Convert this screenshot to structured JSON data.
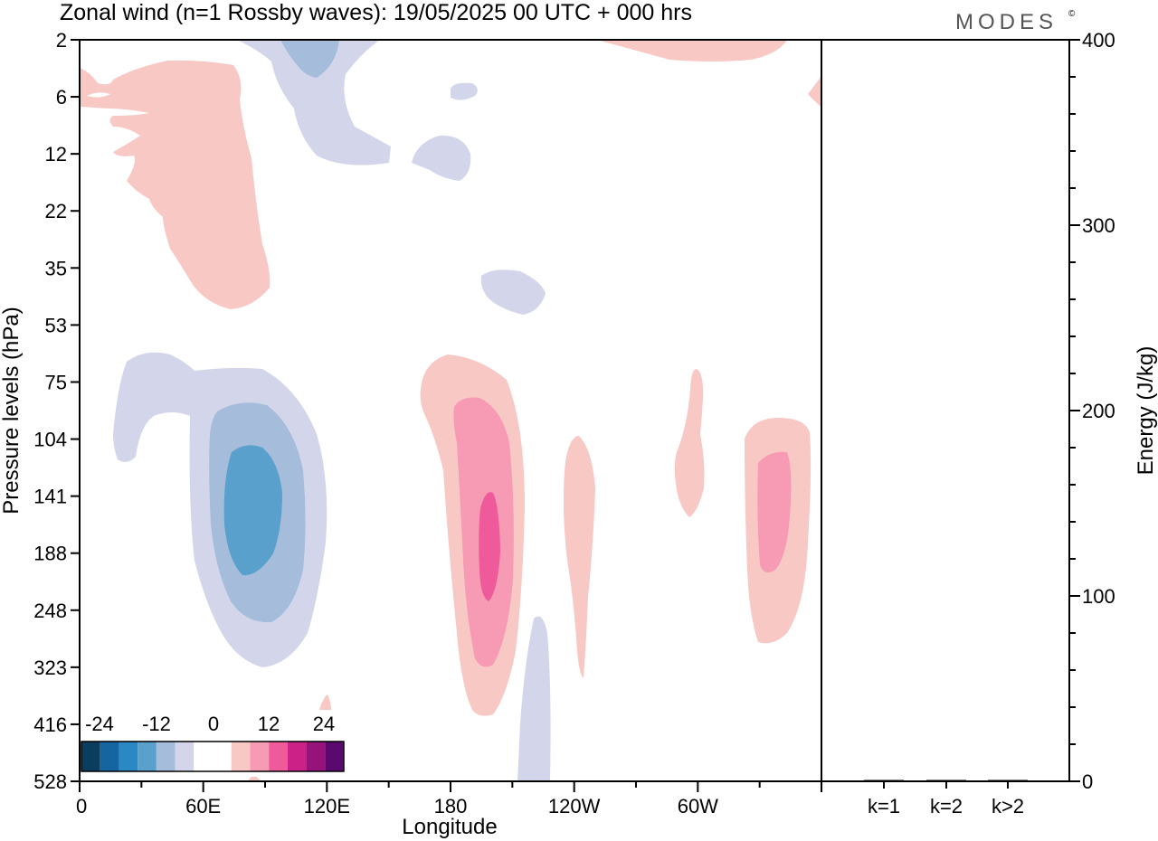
{
  "title": "Zonal wind (n=1 Rossby waves):  19/05/2025  00 UTC  + 000 hrs",
  "brand": "MODES",
  "brand_mark": "©",
  "colors": {
    "neg": [
      "#0b3d5e",
      "#1565a0",
      "#2b88c4",
      "#5aa0cc",
      "#a5bcdb",
      "#d3d6ea"
    ],
    "zero": "#ffffff",
    "pos": [
      "#f8c8c5",
      "#f79ab3",
      "#ee5a9a",
      "#cc2288",
      "#96137a",
      "#5a0a6e"
    ]
  },
  "chart_data": [
    {
      "type": "heatmap",
      "title": "Zonal wind (n=1 Rossby waves):  19/05/2025  00 UTC  + 000 hrs",
      "xlabel": "Longitude",
      "ylabel": "Pressure levels (hPa)",
      "x_ticks": [
        "0",
        "60E",
        "120E",
        "180",
        "120W",
        "60W"
      ],
      "x_tick_lon": [
        0,
        60,
        120,
        180,
        240,
        300
      ],
      "xlim": [
        0,
        360
      ],
      "y_ticks": [
        "2",
        "6",
        "12",
        "22",
        "35",
        "53",
        "75",
        "104",
        "141",
        "188",
        "248",
        "323",
        "416",
        "528"
      ],
      "colorbar": {
        "labels": [
          "-24",
          "-12",
          "0",
          "12",
          "24"
        ],
        "levels": [
          -24,
          -20,
          -16,
          -12,
          -8,
          -4,
          4,
          8,
          12,
          16,
          20,
          24
        ]
      },
      "features": [
        {
          "lon": 82,
          "level": "141",
          "peak": -12,
          "kind": "negative"
        },
        {
          "lon": 20,
          "level": "75",
          "peak": -4,
          "kind": "negative"
        },
        {
          "lon": 100,
          "level": "2",
          "peak": -8,
          "kind": "negative"
        },
        {
          "lon": 185,
          "level": "12",
          "peak": -4,
          "kind": "negative"
        },
        {
          "lon": 200,
          "level": "35",
          "peak": -4,
          "kind": "negative"
        },
        {
          "lon": 222,
          "level": "416",
          "peak": -4,
          "kind": "negative"
        },
        {
          "lon": 45,
          "level": "22",
          "peak": 4,
          "kind": "positive"
        },
        {
          "lon": 200,
          "level": "188",
          "peak": 16,
          "kind": "positive"
        },
        {
          "lon": 242,
          "level": "188",
          "peak": 4,
          "kind": "positive"
        },
        {
          "lon": 300,
          "level": "141",
          "peak": 4,
          "kind": "positive"
        },
        {
          "lon": 335,
          "level": "141",
          "peak": 12,
          "kind": "positive"
        },
        {
          "lon": 295,
          "level": "2",
          "peak": 4,
          "kind": "positive"
        }
      ]
    },
    {
      "type": "bar",
      "categories": [
        "k=1",
        "k=2",
        "k>2"
      ],
      "values": [
        0.3,
        0.2,
        0.5
      ],
      "ylabel": "Energy (J/kg)",
      "ylim": [
        0,
        400
      ],
      "y_ticks": [
        "0",
        "100",
        "200",
        "300",
        "400"
      ]
    }
  ]
}
